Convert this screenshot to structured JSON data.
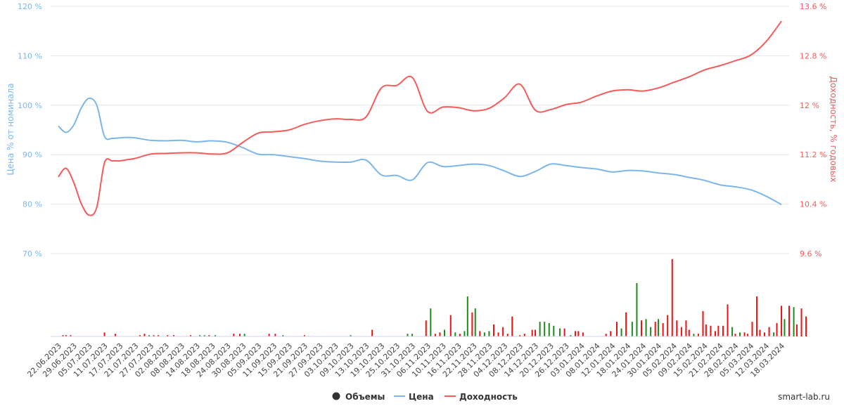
{
  "chart_data": {
    "type": "line",
    "credit": "smart-lab.ru",
    "legend": {
      "placement": "bottom-center",
      "items": [
        {
          "name": "Объемы",
          "color": "#333333",
          "symbol": "circle"
        },
        {
          "name": "Цена",
          "color": "#7cb5ec",
          "symbol": "line"
        },
        {
          "name": "Доходность",
          "color": "#f45b5b",
          "symbol": "line"
        }
      ]
    },
    "y_left": {
      "title": "Цена % от номинала",
      "ticks": [
        "120 %",
        "110 %",
        "100 %",
        "90 %",
        "80 %",
        "70 %"
      ],
      "range": [
        70,
        120
      ],
      "color": "#7cb5ec"
    },
    "y_right": {
      "title": "Доходность, % годовых",
      "ticks": [
        "13.6 %",
        "12.8 %",
        "12 %",
        "11.2 %",
        "10.4 %",
        "9.6 %"
      ],
      "range": [
        9.6,
        13.6
      ],
      "color": "#f45b5b"
    },
    "x_ticks": [
      "22.06.2023",
      "29.06.2023",
      "05.07.2023",
      "11.07.2023",
      "17.07.2023",
      "21.07.2023",
      "27.07.2023",
      "02.08.2023",
      "08.08.2023",
      "14.08.2023",
      "18.08.2023",
      "24.08.2023",
      "30.08.2023",
      "05.09.2023",
      "11.09.2023",
      "15.09.2023",
      "21.09.2023",
      "27.09.2023",
      "03.10.2023",
      "09.10.2023",
      "13.10.2023",
      "19.10.2023",
      "25.10.2023",
      "31.10.2023",
      "06.11.2023",
      "10.11.2023",
      "16.11.2023",
      "22.11.2023",
      "28.11.2023",
      "04.12.2023",
      "08.12.2023",
      "14.12.2023",
      "20.12.2023",
      "26.12.2023",
      "03.01.2024",
      "08.01.2024",
      "12.01.2024",
      "18.01.2024",
      "24.01.2024",
      "30.01.2024",
      "05.02.2024",
      "09.02.2024",
      "15.02.2024",
      "21.02.2024",
      "28.02.2024",
      "05.03.2024",
      "12.03.2024",
      "18.03.2024"
    ],
    "grid": true,
    "series": [
      {
        "name": "Цена",
        "axis": "left",
        "color": "#7cb5ec",
        "x": [
          0,
          0.5,
          1,
          1.5,
          2,
          2.5,
          3,
          3.5,
          4,
          4.5,
          5,
          6,
          7,
          8,
          9,
          10,
          11,
          12,
          13,
          14,
          15,
          16,
          17,
          18,
          19,
          20,
          21,
          22,
          23,
          24,
          25,
          26,
          27,
          28,
          29,
          30,
          31,
          32,
          33,
          34,
          35,
          36,
          37,
          38,
          39,
          40,
          41,
          42,
          43,
          44,
          45,
          46,
          47
        ],
        "values": [
          95.8,
          94.5,
          96.0,
          99.5,
          101.4,
          100.0,
          93.7,
          93.3,
          93.4,
          93.5,
          93.4,
          92.9,
          92.8,
          92.9,
          92.6,
          92.8,
          92.5,
          91.4,
          90.1,
          90.0,
          89.6,
          89.2,
          88.7,
          88.5,
          88.5,
          88.9,
          85.9,
          85.8,
          84.9,
          88.4,
          87.6,
          87.8,
          88.1,
          87.8,
          86.7,
          85.6,
          86.6,
          88.1,
          87.8,
          87.4,
          87.1,
          86.5,
          86.8,
          86.7,
          86.3,
          86.0,
          85.4,
          84.8,
          83.9,
          83.5,
          82.9,
          81.6,
          79.9
        ]
      },
      {
        "name": "Доходность",
        "axis": "right",
        "color": "#f45b5b",
        "x": [
          0,
          0.5,
          1,
          1.5,
          2,
          2.5,
          3,
          3.5,
          4,
          4.5,
          5,
          6,
          7,
          8,
          9,
          10,
          11,
          12,
          13,
          14,
          15,
          16,
          17,
          18,
          19,
          20,
          21,
          22,
          23,
          24,
          25,
          26,
          27,
          28,
          29,
          30,
          31,
          32,
          33,
          34,
          35,
          36,
          37,
          38,
          39,
          40,
          41,
          42,
          43,
          44,
          45,
          46,
          47
        ],
        "values": [
          10.84,
          10.98,
          10.75,
          10.4,
          10.22,
          10.35,
          11.07,
          11.1,
          11.1,
          11.12,
          11.14,
          11.21,
          11.22,
          11.23,
          11.23,
          11.21,
          11.23,
          11.4,
          11.55,
          11.57,
          11.6,
          11.69,
          11.75,
          11.78,
          11.77,
          11.81,
          12.28,
          12.32,
          12.45,
          11.9,
          11.97,
          11.96,
          11.91,
          11.95,
          12.12,
          12.34,
          11.92,
          11.93,
          12.01,
          12.05,
          12.15,
          12.23,
          12.25,
          12.23,
          12.28,
          12.37,
          12.46,
          12.57,
          12.64,
          12.72,
          12.81,
          13.03,
          13.36
        ]
      }
    ],
    "volume": {
      "name": "Объемы",
      "colors": {
        "up": "#1e8a1e",
        "down": "#ee1111"
      },
      "bars": [
        {
          "x": 0.3,
          "v": 1,
          "c": "down"
        },
        {
          "x": 0.5,
          "v": 1,
          "c": "down"
        },
        {
          "x": 0.8,
          "v": 1,
          "c": "down"
        },
        {
          "x": 3.0,
          "v": 3,
          "c": "down"
        },
        {
          "x": 3.7,
          "v": 2,
          "c": "down"
        },
        {
          "x": 5.3,
          "v": 1,
          "c": "down"
        },
        {
          "x": 5.6,
          "v": 2,
          "c": "down"
        },
        {
          "x": 5.9,
          "v": 1,
          "c": "up"
        },
        {
          "x": 6.2,
          "v": 1,
          "c": "down"
        },
        {
          "x": 6.5,
          "v": 1,
          "c": "down"
        },
        {
          "x": 7.1,
          "v": 1,
          "c": "down"
        },
        {
          "x": 7.5,
          "v": 1,
          "c": "down"
        },
        {
          "x": 8.6,
          "v": 1,
          "c": "down"
        },
        {
          "x": 9.2,
          "v": 1,
          "c": "up"
        },
        {
          "x": 9.5,
          "v": 1,
          "c": "up"
        },
        {
          "x": 9.8,
          "v": 1,
          "c": "down"
        },
        {
          "x": 10.2,
          "v": 1,
          "c": "up"
        },
        {
          "x": 11.4,
          "v": 2,
          "c": "down"
        },
        {
          "x": 11.8,
          "v": 2,
          "c": "down"
        },
        {
          "x": 12.1,
          "v": 2,
          "c": "up"
        },
        {
          "x": 13.7,
          "v": 2,
          "c": "down"
        },
        {
          "x": 14.1,
          "v": 2,
          "c": "down"
        },
        {
          "x": 14.6,
          "v": 1,
          "c": "up"
        },
        {
          "x": 16.0,
          "v": 1,
          "c": "down"
        },
        {
          "x": 19.0,
          "v": 1,
          "c": "up"
        },
        {
          "x": 20.4,
          "v": 5,
          "c": "down"
        },
        {
          "x": 22.7,
          "v": 2,
          "c": "up"
        },
        {
          "x": 23.0,
          "v": 2,
          "c": "up"
        },
        {
          "x": 23.9,
          "v": 12,
          "c": "down"
        },
        {
          "x": 24.2,
          "v": 21,
          "c": "up"
        },
        {
          "x": 24.5,
          "v": 2,
          "c": "down"
        },
        {
          "x": 24.8,
          "v": 3,
          "c": "down"
        },
        {
          "x": 25.1,
          "v": 5,
          "c": "up"
        },
        {
          "x": 25.5,
          "v": 16,
          "c": "down"
        },
        {
          "x": 25.8,
          "v": 3,
          "c": "up"
        },
        {
          "x": 26.1,
          "v": 2,
          "c": "down"
        },
        {
          "x": 26.4,
          "v": 4,
          "c": "up"
        },
        {
          "x": 26.6,
          "v": 30,
          "c": "up"
        },
        {
          "x": 26.9,
          "v": 18,
          "c": "down"
        },
        {
          "x": 27.1,
          "v": 21,
          "c": "up"
        },
        {
          "x": 27.4,
          "v": 4,
          "c": "down"
        },
        {
          "x": 27.7,
          "v": 3,
          "c": "up"
        },
        {
          "x": 28.0,
          "v": 4,
          "c": "up"
        },
        {
          "x": 28.3,
          "v": 9,
          "c": "down"
        },
        {
          "x": 28.6,
          "v": 3,
          "c": "down"
        },
        {
          "x": 28.9,
          "v": 7,
          "c": "down"
        },
        {
          "x": 29.2,
          "v": 2,
          "c": "down"
        },
        {
          "x": 29.5,
          "v": 15,
          "c": "down"
        },
        {
          "x": 30.0,
          "v": 1,
          "c": "down"
        },
        {
          "x": 30.3,
          "v": 2,
          "c": "down"
        },
        {
          "x": 30.8,
          "v": 5,
          "c": "down"
        },
        {
          "x": 31.0,
          "v": 5,
          "c": "down"
        },
        {
          "x": 31.3,
          "v": 11,
          "c": "up"
        },
        {
          "x": 31.6,
          "v": 11,
          "c": "up"
        },
        {
          "x": 31.9,
          "v": 10,
          "c": "up"
        },
        {
          "x": 32.2,
          "v": 8,
          "c": "up"
        },
        {
          "x": 32.6,
          "v": 6,
          "c": "up"
        },
        {
          "x": 32.9,
          "v": 6,
          "c": "down"
        },
        {
          "x": 33.3,
          "v": 1,
          "c": "up"
        },
        {
          "x": 33.6,
          "v": 4,
          "c": "down"
        },
        {
          "x": 33.8,
          "v": 4,
          "c": "down"
        },
        {
          "x": 34.1,
          "v": 3,
          "c": "down"
        },
        {
          "x": 35.6,
          "v": 2,
          "c": "down"
        },
        {
          "x": 35.9,
          "v": 4,
          "c": "down"
        },
        {
          "x": 36.3,
          "v": 11,
          "c": "down"
        },
        {
          "x": 36.6,
          "v": 6,
          "c": "up"
        },
        {
          "x": 36.9,
          "v": 18,
          "c": "down"
        },
        {
          "x": 37.3,
          "v": 11,
          "c": "up"
        },
        {
          "x": 37.6,
          "v": 40,
          "c": "up"
        },
        {
          "x": 37.9,
          "v": 12,
          "c": "down"
        },
        {
          "x": 38.2,
          "v": 13,
          "c": "up"
        },
        {
          "x": 38.5,
          "v": 7,
          "c": "up"
        },
        {
          "x": 38.8,
          "v": 11,
          "c": "down"
        },
        {
          "x": 39.0,
          "v": 13,
          "c": "up"
        },
        {
          "x": 39.3,
          "v": 10,
          "c": "down"
        },
        {
          "x": 39.6,
          "v": 16,
          "c": "down"
        },
        {
          "x": 39.9,
          "v": 58,
          "c": "down"
        },
        {
          "x": 40.2,
          "v": 12,
          "c": "down"
        },
        {
          "x": 40.5,
          "v": 7,
          "c": "down"
        },
        {
          "x": 40.8,
          "v": 12,
          "c": "down"
        },
        {
          "x": 41.0,
          "v": 5,
          "c": "down"
        },
        {
          "x": 41.3,
          "v": 2,
          "c": "up"
        },
        {
          "x": 41.6,
          "v": 2,
          "c": "down"
        },
        {
          "x": 41.9,
          "v": 19,
          "c": "down"
        },
        {
          "x": 42.1,
          "v": 9,
          "c": "down"
        },
        {
          "x": 42.4,
          "v": 8,
          "c": "down"
        },
        {
          "x": 42.7,
          "v": 4,
          "c": "down"
        },
        {
          "x": 42.9,
          "v": 8,
          "c": "down"
        },
        {
          "x": 43.2,
          "v": 8,
          "c": "down"
        },
        {
          "x": 43.5,
          "v": 24,
          "c": "down"
        },
        {
          "x": 43.8,
          "v": 7,
          "c": "up"
        },
        {
          "x": 44.0,
          "v": 2,
          "c": "down"
        },
        {
          "x": 44.3,
          "v": 3,
          "c": "up"
        },
        {
          "x": 44.6,
          "v": 3,
          "c": "down"
        },
        {
          "x": 44.8,
          "v": 2,
          "c": "down"
        },
        {
          "x": 45.1,
          "v": 11,
          "c": "down"
        },
        {
          "x": 45.4,
          "v": 30,
          "c": "down"
        },
        {
          "x": 45.6,
          "v": 5,
          "c": "down"
        },
        {
          "x": 45.9,
          "v": 3,
          "c": "down"
        },
        {
          "x": 46.2,
          "v": 7,
          "c": "down"
        },
        {
          "x": 46.5,
          "v": 3,
          "c": "up"
        },
        {
          "x": 46.7,
          "v": 10,
          "c": "down"
        },
        {
          "x": 47.0,
          "v": 23,
          "c": "down"
        },
        {
          "x": 47.2,
          "v": 13,
          "c": "up"
        },
        {
          "x": 47.5,
          "v": 23,
          "c": "down"
        },
        {
          "x": 47.8,
          "v": 22,
          "c": "up"
        },
        {
          "x": 48.0,
          "v": 9,
          "c": "down"
        },
        {
          "x": 48.3,
          "v": 21,
          "c": "down"
        },
        {
          "x": 48.6,
          "v": 15,
          "c": "down"
        }
      ]
    }
  }
}
